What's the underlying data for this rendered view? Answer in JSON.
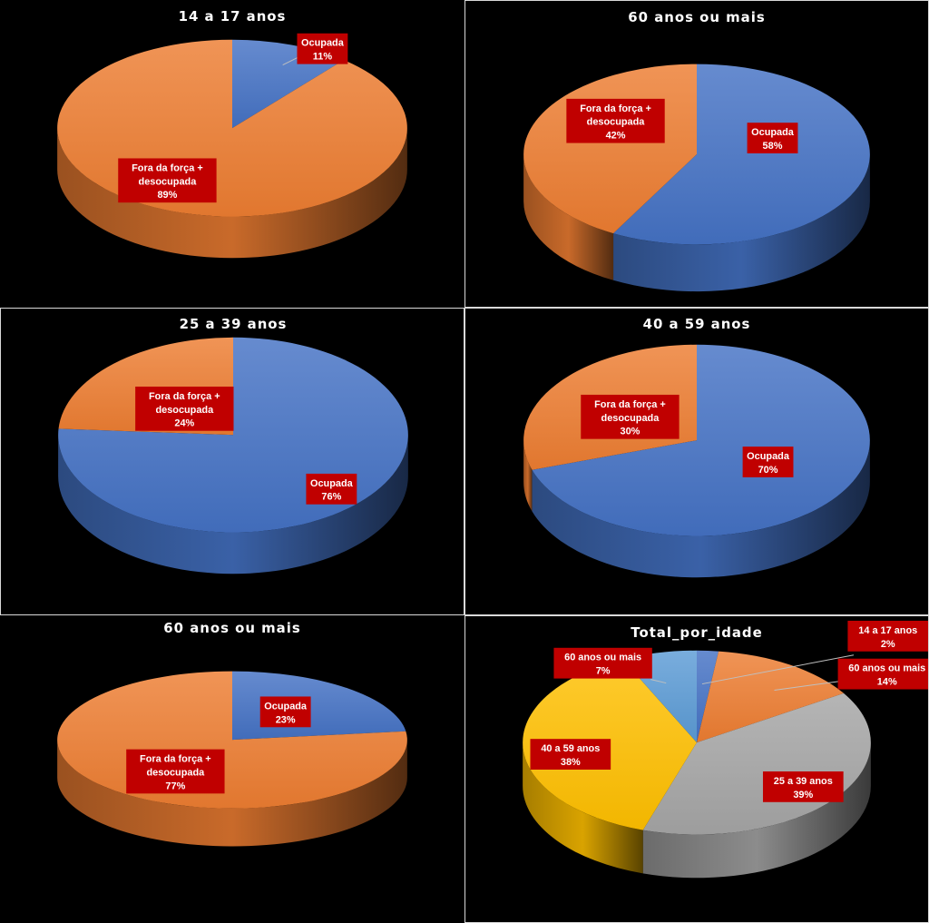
{
  "colors": {
    "ocupada": "#4472c4",
    "fora": "#ed7d31",
    "age_14_17": "#4472c4",
    "age_60_mais": "#5b9bd5",
    "age_40_59": "#ffc000",
    "age_25_39": "#a5a5a5",
    "label_bg": "#c00000",
    "background": "#000000"
  },
  "chart_data": [
    {
      "type": "pie",
      "title": "14 a 17 anos",
      "slices": [
        {
          "name": "Ocupada",
          "value": 11,
          "label": "11%",
          "color_key": "ocupada"
        },
        {
          "name": "Fora da força + desocupada",
          "value": 89,
          "label": "89%",
          "color_key": "fora"
        }
      ]
    },
    {
      "type": "pie",
      "title": "60 anos ou mais",
      "slices": [
        {
          "name": "Ocupada",
          "value": 58,
          "label": "58%",
          "color_key": "ocupada"
        },
        {
          "name": "Fora da força + desocupada",
          "value": 42,
          "label": "42%",
          "color_key": "fora"
        }
      ]
    },
    {
      "type": "pie",
      "title": "25 a 39 anos",
      "slices": [
        {
          "name": "Ocupada",
          "value": 76,
          "label": "76%",
          "color_key": "ocupada"
        },
        {
          "name": "Fora da força + desocupada",
          "value": 24,
          "label": "24%",
          "color_key": "fora"
        }
      ]
    },
    {
      "type": "pie",
      "title": "40 a 59 anos",
      "slices": [
        {
          "name": "Ocupada",
          "value": 70,
          "label": "70%",
          "color_key": "ocupada"
        },
        {
          "name": "Fora da força + desocupada",
          "value": 30,
          "label": "30%",
          "color_key": "fora"
        }
      ]
    },
    {
      "type": "pie",
      "title": "60 anos ou mais",
      "slices": [
        {
          "name": "Ocupada",
          "value": 23,
          "label": "23%",
          "color_key": "ocupada"
        },
        {
          "name": "Fora da força + desocupada",
          "value": 77,
          "label": "77%",
          "color_key": "fora"
        }
      ]
    },
    {
      "type": "pie",
      "title": "Total_por_idade",
      "slices": [
        {
          "name": "14 a 17 anos",
          "value": 2,
          "label": "2%",
          "color_key": "age_14_17"
        },
        {
          "name": "60 anos ou mais",
          "value": 14,
          "label": "14%",
          "color_key": "fora"
        },
        {
          "name": "25 a 39 anos",
          "value": 39,
          "label": "39%",
          "color_key": "age_25_39"
        },
        {
          "name": "40 a 59 anos",
          "value": 38,
          "label": "38%",
          "color_key": "age_40_59"
        },
        {
          "name": "60 anos ou mais",
          "value": 7,
          "label": "7%",
          "color_key": "age_60_mais"
        }
      ]
    }
  ]
}
